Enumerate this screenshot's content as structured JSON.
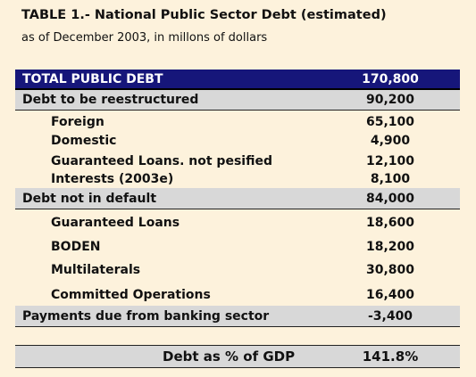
{
  "title": "TABLE 1.- National Public Sector Debt (estimated)",
  "subtitle": "as of December 2003, in millons of dollars",
  "table": {
    "rows": [
      [
        "TOTAL PUBLIC DEBT",
        "170,800"
      ],
      [
        "Debt to be reestructured",
        "90,200"
      ],
      [
        "Foreign",
        "65,100"
      ],
      [
        "Domestic",
        "4,900"
      ],
      [
        "Guaranteed Loans. not pesified",
        "12,100"
      ],
      [
        "Interests (2003e)",
        "8,100"
      ],
      [
        "Debt not in default",
        "84,000"
      ],
      [
        "Guaranteed Loans",
        "18,600"
      ],
      [
        "BODEN",
        "18,200"
      ],
      [
        "Multilaterals",
        "30,800"
      ],
      [
        "Committed Operations",
        "16,400"
      ],
      [
        "Payments due from banking sector",
        "-3,400"
      ]
    ]
  },
  "footer": [
    "Debt as % of GDP",
    "141.8%"
  ]
}
